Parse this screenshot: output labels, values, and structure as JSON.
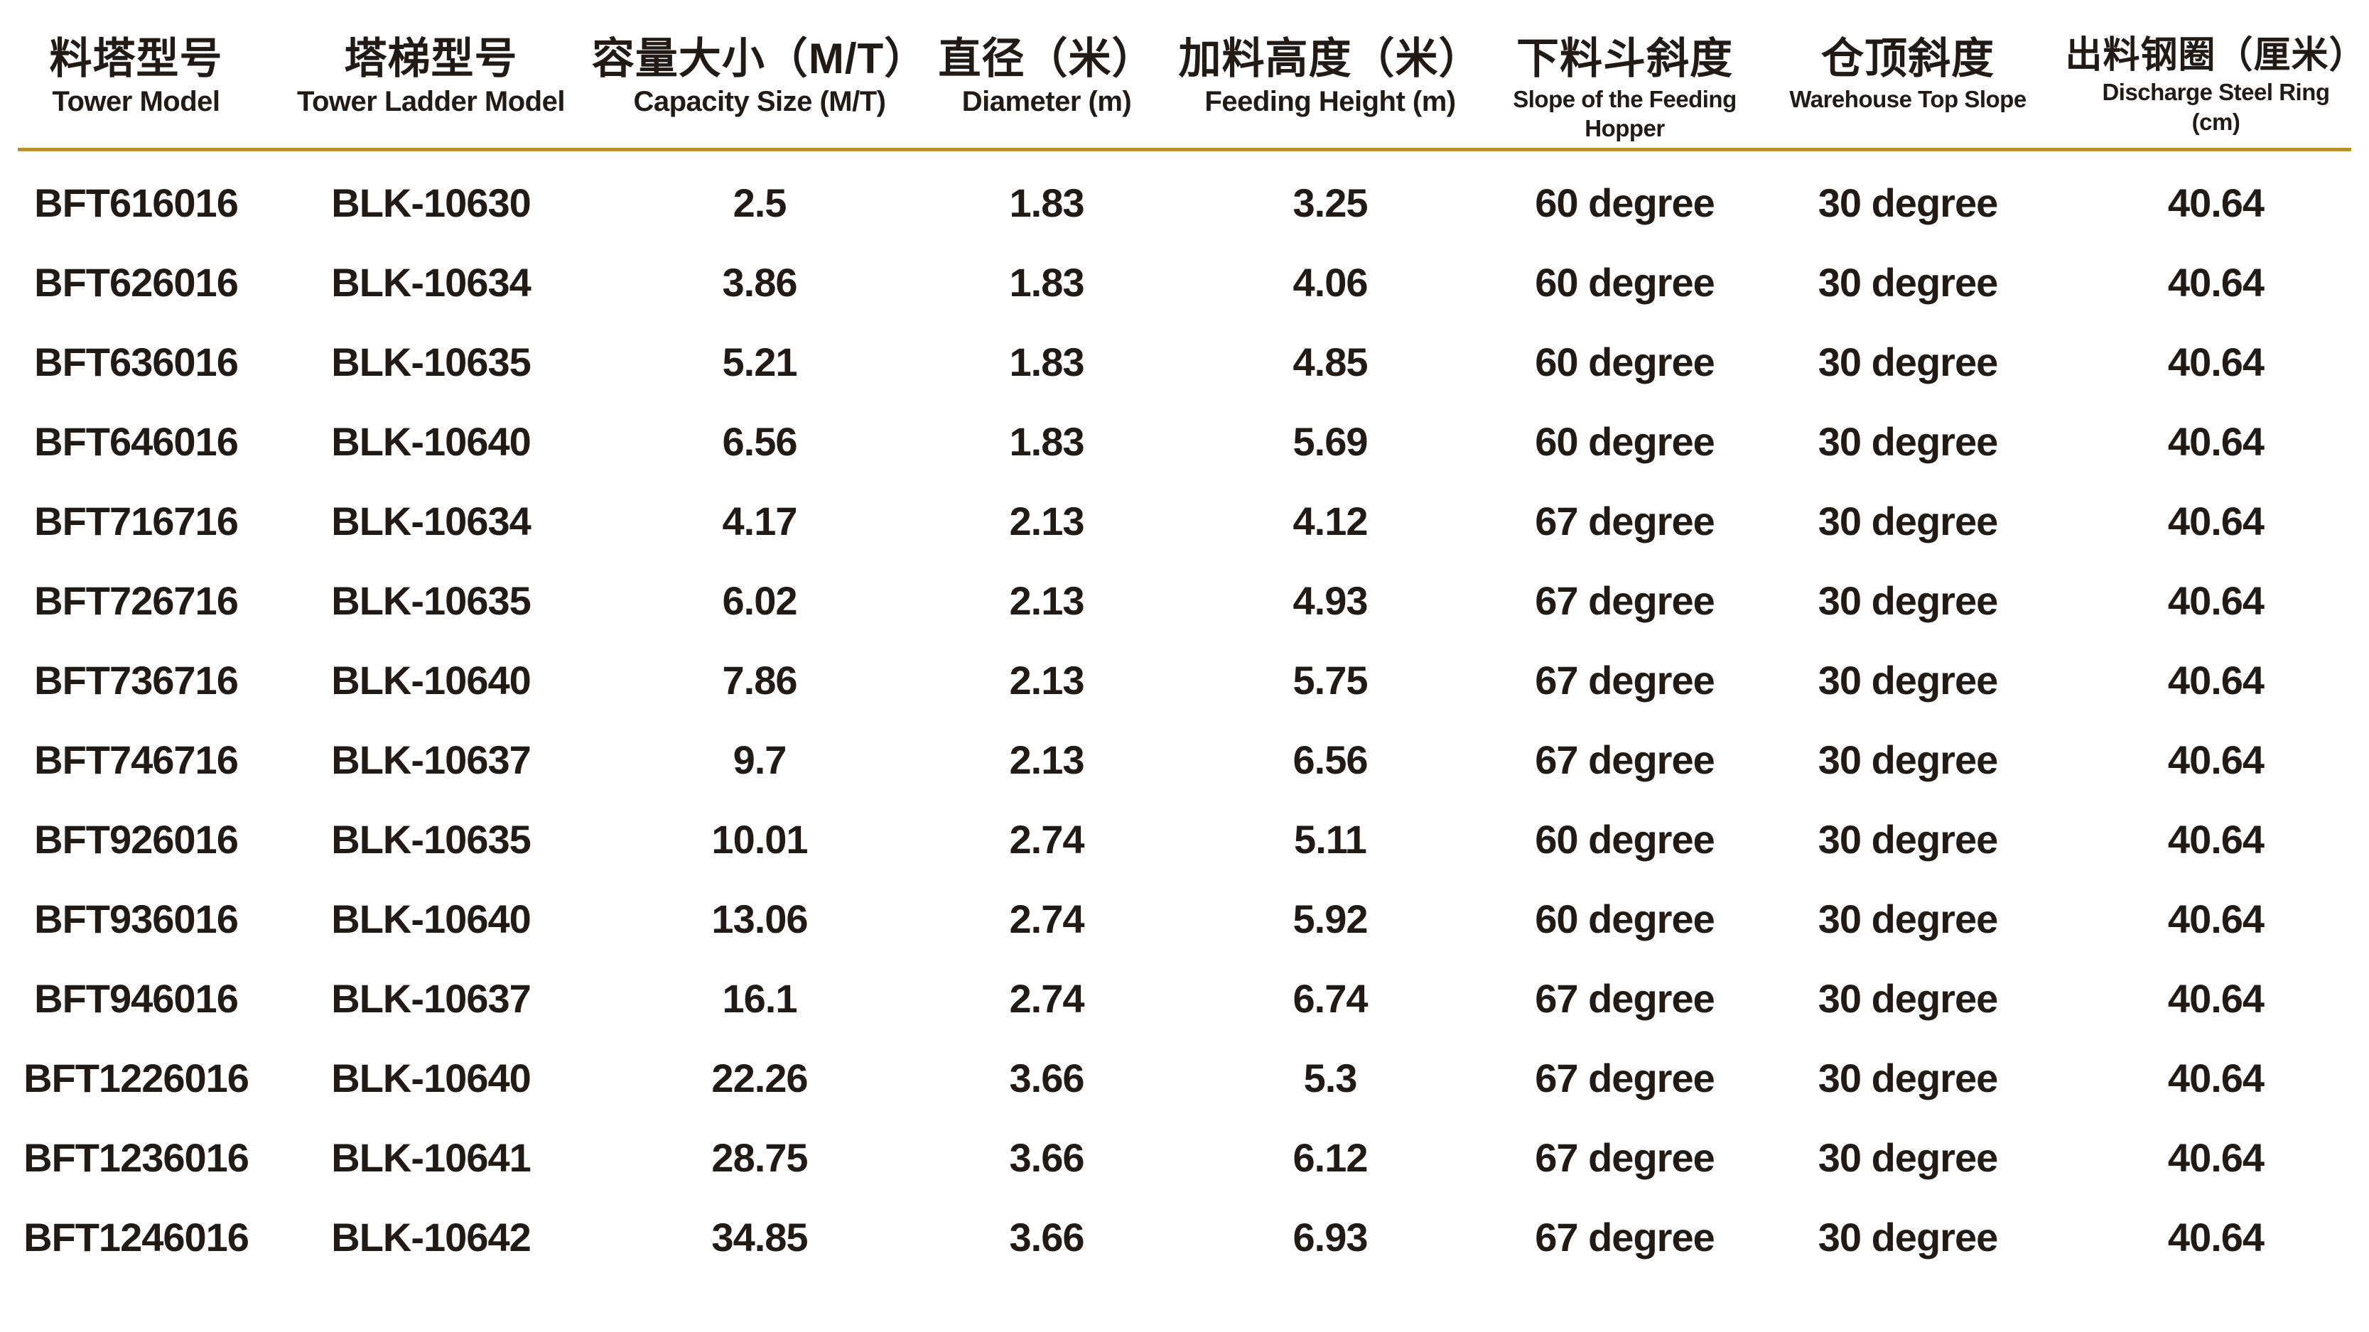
{
  "colors": {
    "accent_line": "#b9912a",
    "text": "#211a15",
    "background": "#ffffff"
  },
  "table": {
    "columns": [
      {
        "zh": "料塔型号",
        "en": "Tower Model"
      },
      {
        "zh": "塔梯型号",
        "en": "Tower Ladder Model"
      },
      {
        "zh": "容量大小（M/T）",
        "en": "Capacity Size (M/T)"
      },
      {
        "zh": "直径（米）",
        "en": "Diameter (m)"
      },
      {
        "zh": "加料高度（米）",
        "en": "Feeding Height (m)"
      },
      {
        "zh": "下料斗斜度",
        "en": "Slope of the Feeding Hopper"
      },
      {
        "zh": "仓顶斜度",
        "en": "Warehouse Top Slope"
      },
      {
        "zh": "出料钢圈（厘米）",
        "en": "Discharge Steel Ring (cm)"
      }
    ],
    "rows": [
      [
        "BFT616016",
        "BLK-10630",
        "2.5",
        "1.83",
        "3.25",
        "60 degree",
        "30 degree",
        "40.64"
      ],
      [
        "BFT626016",
        "BLK-10634",
        "3.86",
        "1.83",
        "4.06",
        "60 degree",
        "30 degree",
        "40.64"
      ],
      [
        "BFT636016",
        "BLK-10635",
        "5.21",
        "1.83",
        "4.85",
        "60 degree",
        "30 degree",
        "40.64"
      ],
      [
        "BFT646016",
        "BLK-10640",
        "6.56",
        "1.83",
        "5.69",
        "60 degree",
        "30 degree",
        "40.64"
      ],
      [
        "BFT716716",
        "BLK-10634",
        "4.17",
        "2.13",
        "4.12",
        "67 degree",
        "30 degree",
        "40.64"
      ],
      [
        "BFT726716",
        "BLK-10635",
        "6.02",
        "2.13",
        "4.93",
        "67 degree",
        "30 degree",
        "40.64"
      ],
      [
        "BFT736716",
        "BLK-10640",
        "7.86",
        "2.13",
        "5.75",
        "67 degree",
        "30 degree",
        "40.64"
      ],
      [
        "BFT746716",
        "BLK-10637",
        "9.7",
        "2.13",
        "6.56",
        "67 degree",
        "30 degree",
        "40.64"
      ],
      [
        "BFT926016",
        "BLK-10635",
        "10.01",
        "2.74",
        "5.11",
        "60 degree",
        "30 degree",
        "40.64"
      ],
      [
        "BFT936016",
        "BLK-10640",
        "13.06",
        "2.74",
        "5.92",
        "60 degree",
        "30 degree",
        "40.64"
      ],
      [
        "BFT946016",
        "BLK-10637",
        "16.1",
        "2.74",
        "6.74",
        "67 degree",
        "30 degree",
        "40.64"
      ],
      [
        "BFT1226016",
        "BLK-10640",
        "22.26",
        "3.66",
        "5.3",
        "67 degree",
        "30 degree",
        "40.64"
      ],
      [
        "BFT1236016",
        "BLK-10641",
        "28.75",
        "3.66",
        "6.12",
        "67 degree",
        "30 degree",
        "40.64"
      ],
      [
        "BFT1246016",
        "BLK-10642",
        "34.85",
        "3.66",
        "6.93",
        "67 degree",
        "30 degree",
        "40.64"
      ]
    ]
  }
}
